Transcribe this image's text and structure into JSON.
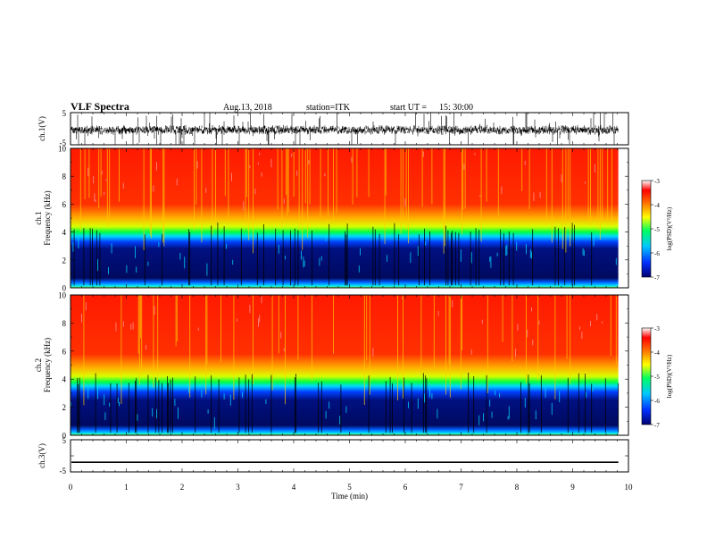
{
  "header": {
    "title": "VLF Spectra",
    "date": "Aug.13, 2018",
    "station": "station=ITK",
    "start_label": "start  UT =",
    "start_time": "15: 30:00"
  },
  "colors": {
    "colormap": [
      "#000070",
      "#0030ff",
      "#00c8ff",
      "#00ff60",
      "#ffff00",
      "#ff8000",
      "#ff0000",
      "#ffffff"
    ],
    "trace": "#000000"
  },
  "chart_data": [
    {
      "type": "line",
      "name": "ch.1 waveform",
      "ylabel": "ch.1(V)",
      "ylim": [
        -5,
        5
      ],
      "yticks": [
        "5",
        "-5"
      ],
      "xlim": [
        0,
        10
      ],
      "note_level": "dense noisy trace around -0.5 V with spikes to ±5 V"
    },
    {
      "type": "heatmap",
      "name": "ch.1 spectrogram",
      "ylabel": "ch.1\nFrequency (kHz)",
      "ylabel_top": "ch.1",
      "ylabel_bottom": "Frequency  (kHz)",
      "ylim": [
        0,
        10
      ],
      "yticks": [
        "0",
        "2",
        "4",
        "6",
        "8",
        "10"
      ],
      "xlim": [
        0,
        10
      ],
      "data_end_min": 9.82,
      "colorbar": {
        "label": "log(PSD)(V²/Hz)",
        "range": [
          -7,
          -3
        ],
        "ticks": [
          "-3",
          "-4",
          "-5",
          "-6",
          "-7"
        ]
      },
      "bands_khz": {
        "low_floor": [
          0,
          0.3
        ],
        "dark_band": [
          0.3,
          3.8
        ],
        "transition": [
          3.8,
          5.2
        ],
        "high": [
          5.2,
          10
        ]
      }
    },
    {
      "type": "heatmap",
      "name": "ch.2 spectrogram",
      "ylabel_top": "ch.2",
      "ylabel_bottom": "Frequency  (kHz)",
      "ylim": [
        0,
        10
      ],
      "yticks": [
        "0",
        "2",
        "4",
        "6",
        "8",
        "10"
      ],
      "xlim": [
        0,
        10
      ],
      "data_end_min": 9.82,
      "colorbar": {
        "label": "log(PSD)(V²/Hz)",
        "range": [
          -7,
          -3
        ],
        "ticks": [
          "-3",
          "-4",
          "-5",
          "-6",
          "-7"
        ]
      },
      "bands_khz": {
        "low_floor": [
          0,
          0.3
        ],
        "dark_band": [
          0.3,
          3.6
        ],
        "transition": [
          3.6,
          5.0
        ],
        "high": [
          5.0,
          10
        ]
      }
    },
    {
      "type": "line",
      "name": "ch.3 waveform",
      "ylabel": "ch.3(V)",
      "ylim": [
        -5,
        5
      ],
      "yticks": [
        "5",
        "0",
        "-5"
      ],
      "xlim": [
        0,
        10
      ],
      "xlabel": "Time  (min)",
      "xticks": [
        "0",
        "1",
        "2",
        "3",
        "4",
        "5",
        "6",
        "7",
        "8",
        "9",
        "10"
      ],
      "level": -2
    }
  ]
}
